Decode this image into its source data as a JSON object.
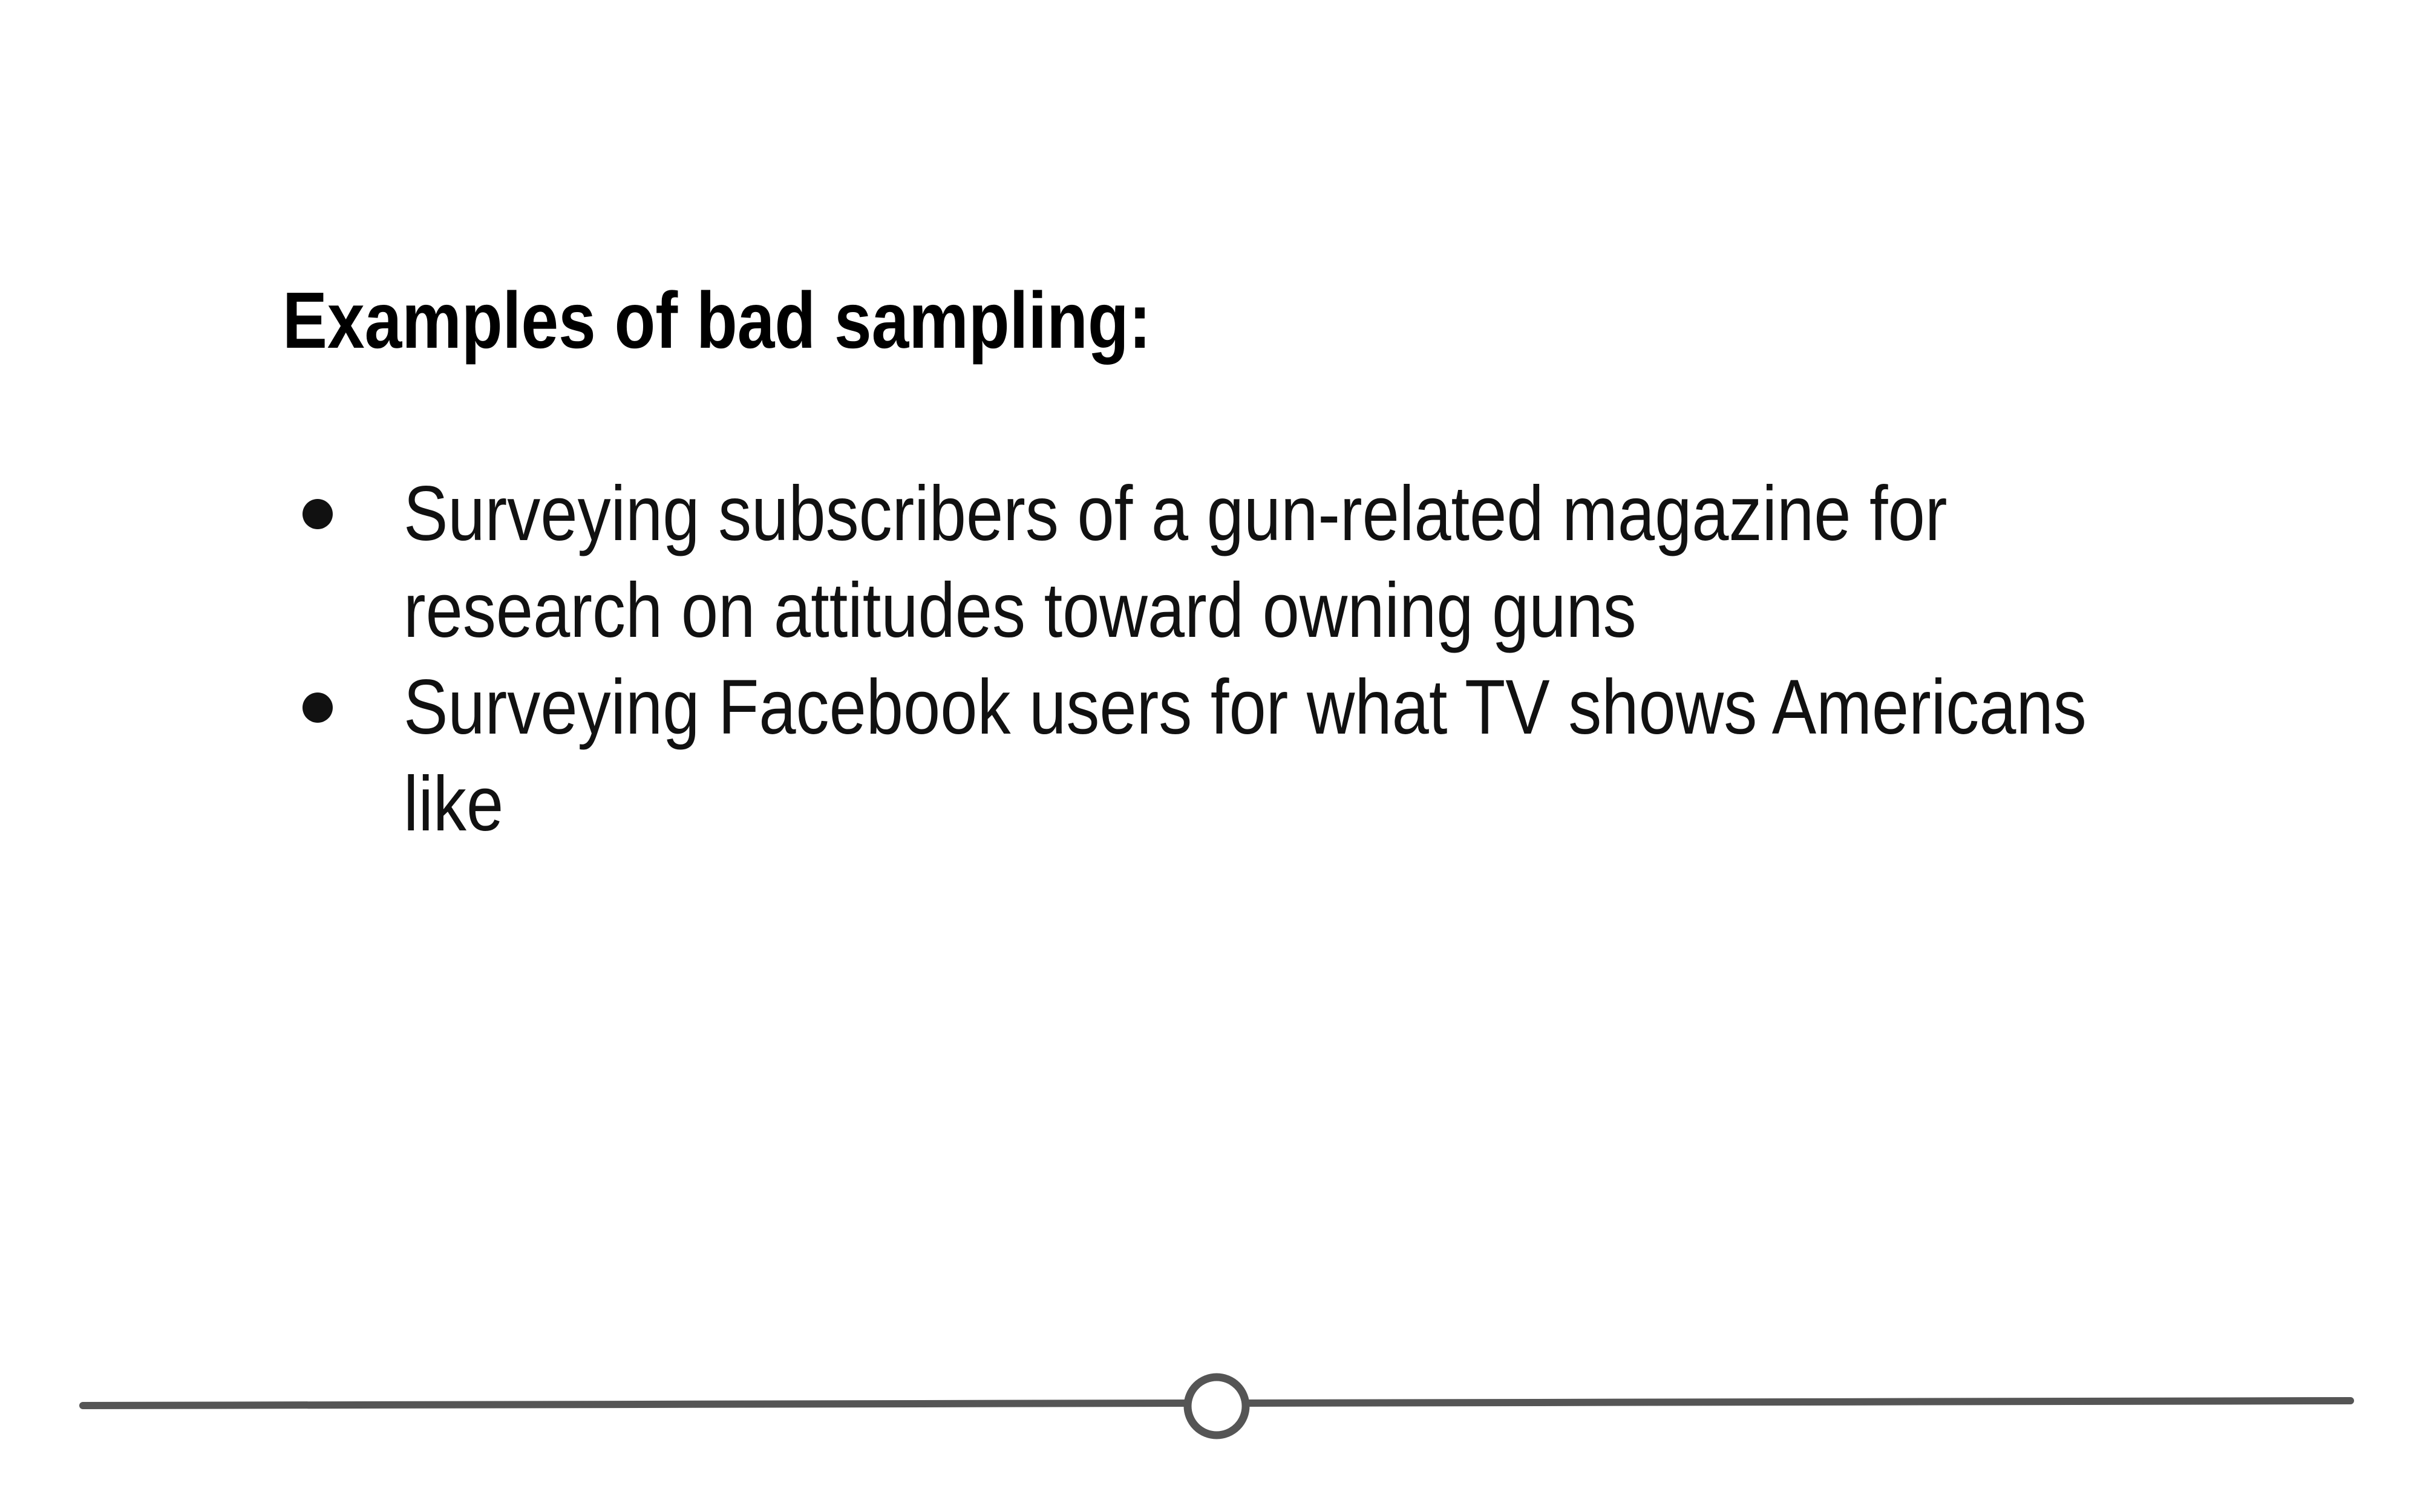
{
  "slide": {
    "title": "Examples of bad sampling:",
    "bullets": [
      "Surveying subscribers of a gun-related magazine for research on attitudes toward owning guns",
      "Surveying Facebook users for what TV shows Americans like"
    ]
  },
  "colors": {
    "background": "#ffffff",
    "text": "#111111",
    "divider": "#555555"
  }
}
